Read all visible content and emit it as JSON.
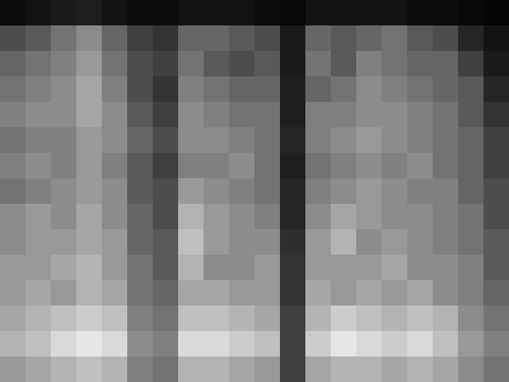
{
  "chart_data": {
    "type": "heatmap",
    "tick_labels": false,
    "color_range": [
      0,
      100
    ],
    "cells": [
      [
        5,
        8,
        10,
        12,
        8,
        5,
        5,
        8,
        8,
        8,
        5,
        3,
        8,
        8,
        8,
        8,
        5,
        5,
        3,
        2
      ],
      [
        30,
        35,
        45,
        55,
        40,
        25,
        20,
        40,
        40,
        35,
        30,
        10,
        40,
        35,
        40,
        45,
        35,
        30,
        15,
        8
      ],
      [
        40,
        45,
        50,
        60,
        45,
        30,
        25,
        45,
        35,
        30,
        35,
        10,
        45,
        35,
        50,
        45,
        40,
        40,
        25,
        10
      ],
      [
        45,
        50,
        55,
        65,
        50,
        30,
        20,
        50,
        45,
        40,
        40,
        12,
        40,
        45,
        55,
        50,
        45,
        40,
        35,
        15
      ],
      [
        50,
        55,
        55,
        65,
        55,
        35,
        25,
        55,
        50,
        45,
        45,
        12,
        50,
        50,
        55,
        55,
        50,
        45,
        35,
        20
      ],
      [
        45,
        50,
        50,
        60,
        55,
        40,
        30,
        55,
        55,
        50,
        45,
        15,
        50,
        55,
        60,
        55,
        50,
        45,
        40,
        25
      ],
      [
        50,
        55,
        50,
        60,
        50,
        35,
        25,
        50,
        50,
        55,
        45,
        12,
        45,
        50,
        55,
        50,
        55,
        45,
        40,
        25
      ],
      [
        45,
        50,
        55,
        60,
        55,
        35,
        30,
        60,
        55,
        50,
        45,
        15,
        50,
        55,
        60,
        55,
        50,
        50,
        40,
        30
      ],
      [
        55,
        60,
        55,
        65,
        55,
        40,
        30,
        70,
        60,
        55,
        50,
        15,
        55,
        65,
        60,
        55,
        55,
        50,
        45,
        30
      ],
      [
        55,
        60,
        60,
        65,
        60,
        40,
        35,
        75,
        60,
        55,
        55,
        18,
        60,
        70,
        55,
        60,
        55,
        50,
        45,
        35
      ],
      [
        60,
        60,
        65,
        70,
        60,
        45,
        35,
        70,
        55,
        55,
        60,
        20,
        60,
        60,
        60,
        65,
        55,
        55,
        50,
        35
      ],
      [
        60,
        65,
        60,
        70,
        65,
        45,
        40,
        65,
        65,
        60,
        60,
        20,
        65,
        60,
        65,
        60,
        65,
        55,
        50,
        40
      ],
      [
        65,
        70,
        75,
        80,
        75,
        50,
        45,
        75,
        75,
        70,
        65,
        25,
        70,
        80,
        75,
        70,
        75,
        70,
        55,
        45
      ],
      [
        70,
        75,
        85,
        90,
        85,
        55,
        50,
        85,
        85,
        80,
        75,
        25,
        80,
        90,
        85,
        80,
        85,
        75,
        60,
        50
      ],
      [
        60,
        65,
        70,
        75,
        70,
        50,
        45,
        70,
        70,
        65,
        60,
        25,
        65,
        70,
        70,
        65,
        70,
        65,
        55,
        45
      ]
    ]
  }
}
